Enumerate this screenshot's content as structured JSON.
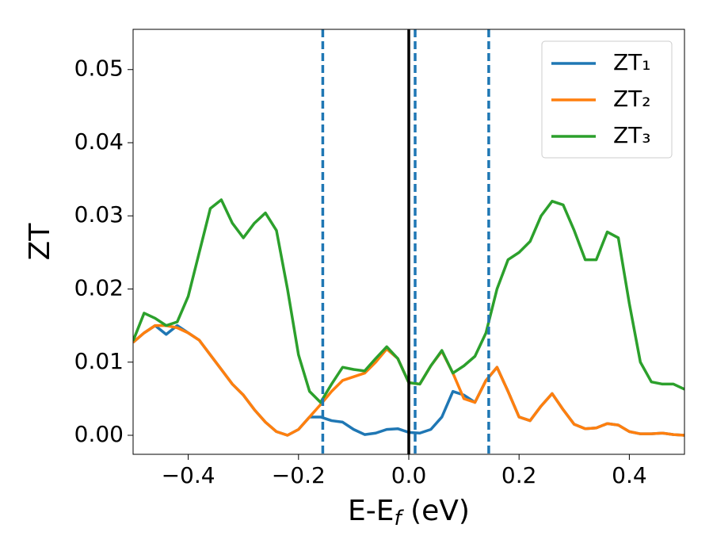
{
  "chart_data": {
    "type": "line",
    "xlabel": {
      "main": "E-E",
      "sub": "f",
      "rest": " (eV)"
    },
    "ylabel": "ZT",
    "x": [
      -0.5,
      -0.48,
      -0.46,
      -0.44,
      -0.42,
      -0.4,
      -0.38,
      -0.36,
      -0.34,
      -0.32,
      -0.3,
      -0.28,
      -0.26,
      -0.24,
      -0.22,
      -0.2,
      -0.18,
      -0.16,
      -0.14,
      -0.12,
      -0.1,
      -0.08,
      -0.06,
      -0.04,
      -0.02,
      0,
      0.02,
      0.04,
      0.06,
      0.08,
      0.1,
      0.12,
      0.14,
      0.16,
      0.18,
      0.2,
      0.22,
      0.24,
      0.26,
      0.28,
      0.3,
      0.32,
      0.34,
      0.36,
      0.38,
      0.4,
      0.42,
      0.44,
      0.46,
      0.48,
      0.5
    ],
    "series": [
      {
        "name": "ZT₁",
        "color": "#1f77b4",
        "values": [
          0.0127,
          0.014,
          0.015,
          0.0138,
          0.015,
          0.014,
          0.013,
          0.011,
          0.009,
          0.007,
          0.0055,
          0.0035,
          0.0018,
          0.0005,
          0.0,
          0.0008,
          0.0025,
          0.0025,
          0.002,
          0.0018,
          0.0008,
          0.0001,
          0.0003,
          0.0008,
          0.0009,
          0.0004,
          0.0003,
          0.0008,
          0.0025,
          0.006,
          0.0055,
          0.0045,
          0.0075,
          0.0093,
          0.006,
          0.0025,
          0.002,
          0.004,
          0.0057,
          0.0035,
          0.0015,
          0.0009,
          0.001,
          0.0016,
          0.0014,
          0.0005,
          0.0002,
          0.0002,
          0.0003,
          0.0001,
          0.0
        ]
      },
      {
        "name": "ZT₂",
        "color": "#ff7f0e",
        "values": [
          0.0127,
          0.014,
          0.015,
          0.015,
          0.0147,
          0.014,
          0.013,
          0.011,
          0.009,
          0.007,
          0.0055,
          0.0035,
          0.0018,
          0.0005,
          0.0,
          0.0008,
          0.0025,
          0.0042,
          0.006,
          0.0075,
          0.008,
          0.0085,
          0.01,
          0.0118,
          0.0105,
          0.0072,
          0.007,
          0.0095,
          0.0115,
          0.0085,
          0.005,
          0.0045,
          0.0075,
          0.0093,
          0.006,
          0.0025,
          0.002,
          0.004,
          0.0057,
          0.0035,
          0.0015,
          0.0009,
          0.001,
          0.0016,
          0.0014,
          0.0005,
          0.0002,
          0.0002,
          0.0003,
          0.0001,
          0.0
        ]
      },
      {
        "name": "ZT₃",
        "color": "#2ca02c",
        "values": [
          0.0129,
          0.0167,
          0.016,
          0.015,
          0.0155,
          0.019,
          0.025,
          0.031,
          0.0322,
          0.029,
          0.027,
          0.029,
          0.0304,
          0.028,
          0.02,
          0.011,
          0.006,
          0.0045,
          0.007,
          0.0093,
          0.009,
          0.0088,
          0.0105,
          0.0121,
          0.0105,
          0.0072,
          0.007,
          0.0095,
          0.0116,
          0.0085,
          0.0095,
          0.0108,
          0.014,
          0.02,
          0.024,
          0.025,
          0.0265,
          0.03,
          0.032,
          0.0315,
          0.028,
          0.024,
          0.024,
          0.0278,
          0.027,
          0.018,
          0.01,
          0.0073,
          0.007,
          0.007,
          0.0063
        ]
      }
    ],
    "vlines": [
      {
        "x": -0.156,
        "color": "#1f77b4",
        "style": "dashed"
      },
      {
        "x": 0.0,
        "color": "#000000",
        "style": "solid"
      },
      {
        "x": 0.0115,
        "color": "#1f77b4",
        "style": "dashed"
      },
      {
        "x": 0.145,
        "color": "#1f77b4",
        "style": "dashed"
      }
    ],
    "xlim": [
      -0.5,
      0.5
    ],
    "ylim": [
      -0.0026,
      0.0555
    ],
    "xticks": [
      {
        "value": -0.4,
        "label": "−0.4"
      },
      {
        "value": -0.2,
        "label": "−0.2"
      },
      {
        "value": 0.0,
        "label": "0.0"
      },
      {
        "value": 0.2,
        "label": "0.2"
      },
      {
        "value": 0.4,
        "label": "0.4"
      }
    ],
    "yticks": [
      {
        "value": 0,
        "label": "0.00"
      },
      {
        "value": 0.01,
        "label": "0.01"
      },
      {
        "value": 0.02,
        "label": "0.02"
      },
      {
        "value": 0.03,
        "label": "0.03"
      },
      {
        "value": 0.04,
        "label": "0.04"
      },
      {
        "value": 0.05,
        "label": "0.05"
      }
    ],
    "legend": "upper right",
    "grid": false
  }
}
